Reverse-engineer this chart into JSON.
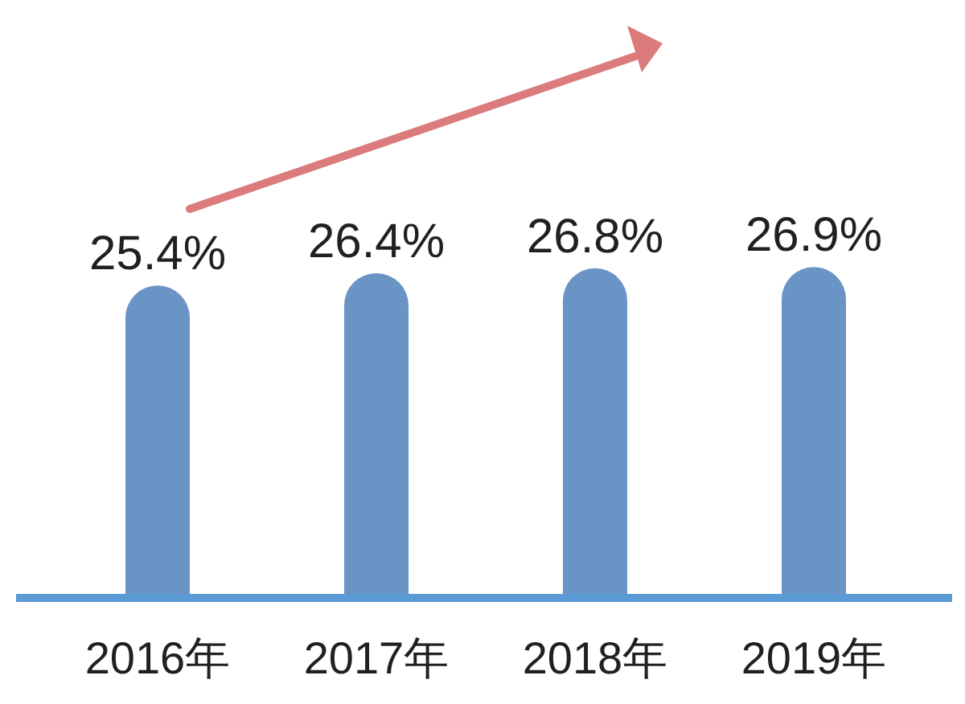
{
  "chart_data": {
    "type": "bar",
    "categories": [
      "2016年",
      "2017年",
      "2018年",
      "2019年"
    ],
    "values": [
      25.4,
      26.4,
      26.8,
      26.9
    ],
    "value_labels": [
      "25.4%",
      "26.4%",
      "26.8%",
      "26.9%"
    ],
    "color": "#6a93c6",
    "tick_labels": "x"
  }
}
